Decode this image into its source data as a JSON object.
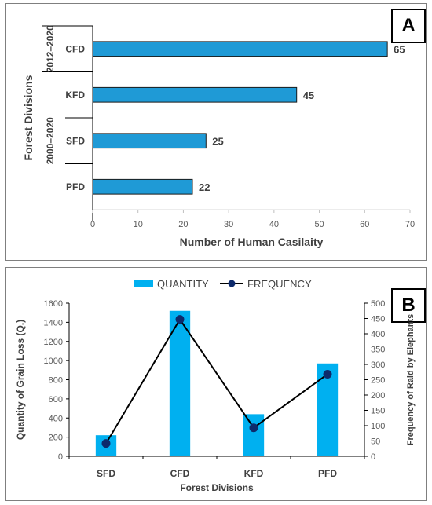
{
  "chart_data": [
    {
      "type": "bar",
      "orientation": "horizontal",
      "panel_label": "A",
      "categories": [
        "CFD",
        "KFD",
        "SFD",
        "PFD"
      ],
      "values": [
        65,
        45,
        25,
        22
      ],
      "groups": [
        {
          "label": "2012–2020",
          "categories": [
            "CFD"
          ]
        },
        {
          "label": "2000–2020",
          "categories": [
            "KFD",
            "SFD",
            "PFD"
          ]
        }
      ],
      "xlabel": "Number of Human Casilaity",
      "ylabel": "Forest Divisions",
      "xlim": [
        0,
        70
      ],
      "xticks": [
        0,
        10,
        20,
        30,
        40,
        50,
        60,
        70
      ],
      "data_labels": true,
      "bar_color": "#1f9ad6",
      "grid": false
    },
    {
      "type": "bar+line",
      "panel_label": "B",
      "categories": [
        "SFD",
        "CFD",
        "KFD",
        "PFD"
      ],
      "series": [
        {
          "name": "QUANTITY",
          "type": "bar",
          "axis": "left",
          "values": [
            220,
            1520,
            440,
            970
          ],
          "color": "#00b0f0"
        },
        {
          "name": "FREQUENCY",
          "type": "line",
          "axis": "right",
          "values": [
            42,
            447,
            93,
            268
          ],
          "color": "#000000",
          "marker_color": "#0d2a6b"
        }
      ],
      "xlabel": "Forest Divisions",
      "ylabel": "Quantity of Grain Loss (Q.)",
      "y2label": "Frequency of Raid by Elephants",
      "ylim": [
        0,
        1600
      ],
      "yticks": [
        0,
        200,
        400,
        600,
        800,
        1000,
        1200,
        1400,
        1600
      ],
      "y2lim": [
        0,
        500
      ],
      "y2ticks": [
        0,
        50,
        100,
        150,
        200,
        250,
        300,
        350,
        400,
        450,
        500
      ],
      "legend_position": "top",
      "grid": false
    }
  ]
}
